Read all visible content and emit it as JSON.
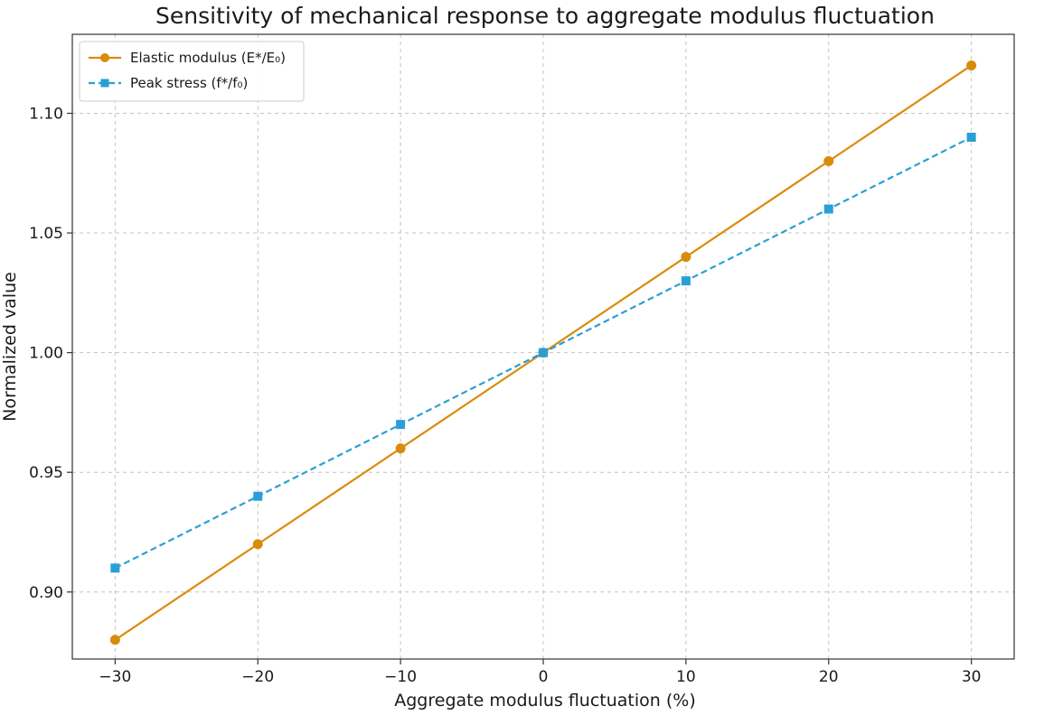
{
  "chart_data": {
    "type": "line",
    "title": "Sensitivity of mechanical response to aggregate modulus fluctuation",
    "xlabel": "Aggregate modulus fluctuation (%)",
    "ylabel": "Normalized value",
    "x": [
      -30,
      -20,
      -10,
      0,
      10,
      20,
      30
    ],
    "xlim": [
      -33,
      33
    ],
    "ylim": [
      0.872,
      1.133
    ],
    "xticks": [
      -30,
      -20,
      -10,
      0,
      10,
      20,
      30
    ],
    "xtick_labels": [
      "−30",
      "−20",
      "−10",
      "0",
      "10",
      "20",
      "30"
    ],
    "yticks": [
      0.9,
      0.95,
      1.0,
      1.05,
      1.1
    ],
    "ytick_labels": [
      "0.90",
      "0.95",
      "1.00",
      "1.05",
      "1.10"
    ],
    "grid": true,
    "legend_position": "top-left",
    "series": [
      {
        "name": "Elastic modulus (E*/E₀)",
        "values": [
          0.88,
          0.92,
          0.96,
          1.0,
          1.04,
          1.08,
          1.12
        ],
        "color": "#d98c0a",
        "marker": "circle",
        "linestyle": "solid"
      },
      {
        "name": "Peak stress (f*/f₀)",
        "values": [
          0.91,
          0.94,
          0.97,
          1.0,
          1.03,
          1.06,
          1.09
        ],
        "color": "#2a9fd6",
        "marker": "square",
        "linestyle": "dashed"
      }
    ]
  }
}
